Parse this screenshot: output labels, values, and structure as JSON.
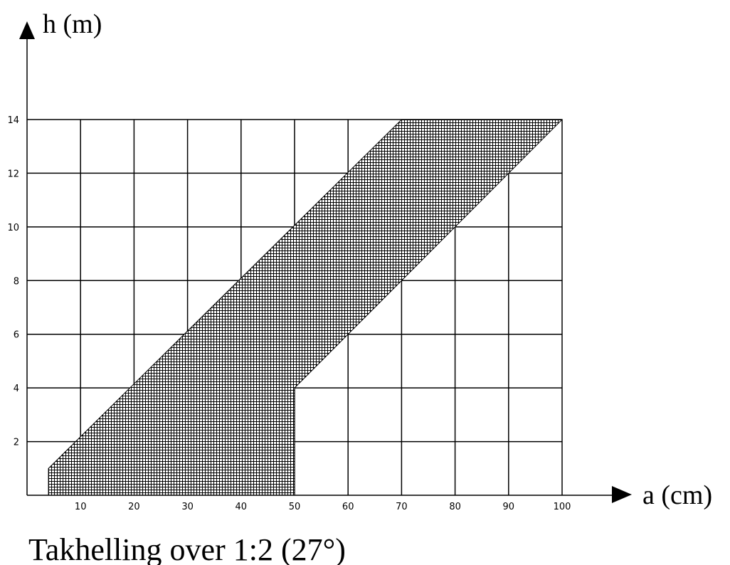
{
  "chart_data": {
    "type": "area",
    "title": "Takhelling over 1:2 (27°)",
    "xlabel": "a (cm)",
    "ylabel": "h (m)",
    "xlim": [
      0,
      100
    ],
    "ylim": [
      0,
      14
    ],
    "x_ticks": [
      10,
      20,
      30,
      40,
      50,
      60,
      70,
      80,
      90,
      100
    ],
    "y_ticks": [
      2,
      4,
      6,
      8,
      10,
      12,
      14
    ],
    "grid": true,
    "region": {
      "fill": "crosshatch",
      "polygon": [
        {
          "x": 4,
          "y": 0
        },
        {
          "x": 4,
          "y": 1
        },
        {
          "x": 70,
          "y": 14
        },
        {
          "x": 100,
          "y": 14
        },
        {
          "x": 50,
          "y": 4
        },
        {
          "x": 50,
          "y": 0
        }
      ]
    }
  },
  "colors": {
    "line": "#000000",
    "background": "#ffffff"
  }
}
